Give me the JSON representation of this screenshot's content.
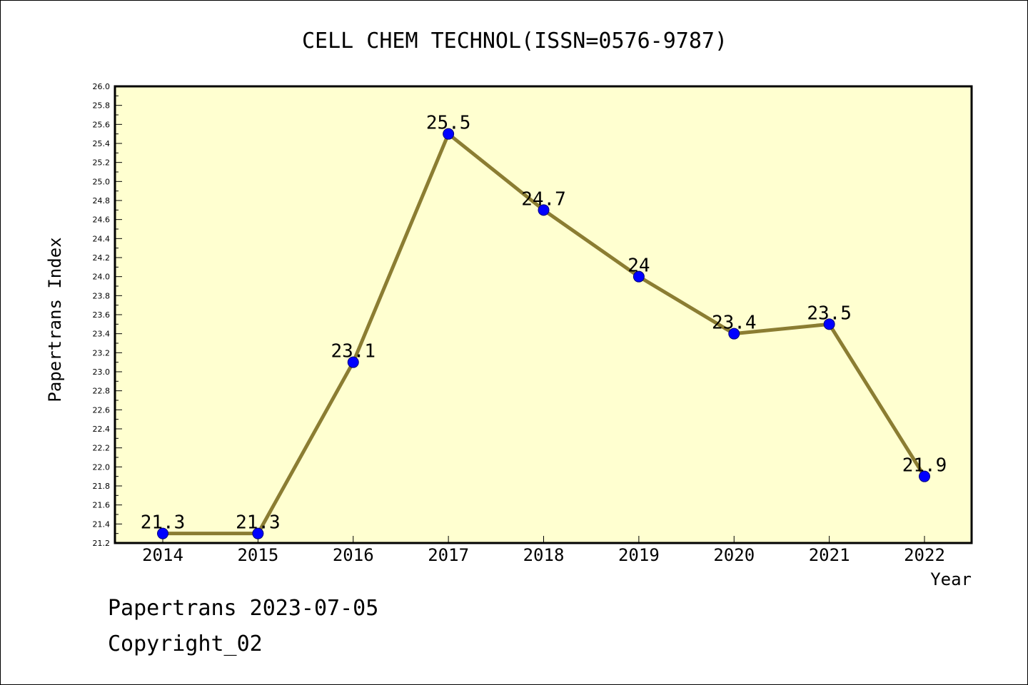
{
  "chart_data": {
    "type": "line",
    "title": "CELL CHEM TECHNOL(ISSN=0576-9787)",
    "xlabel": "Year",
    "ylabel": "Papertrans Index",
    "categories": [
      "2014",
      "2015",
      "2016",
      "2017",
      "2018",
      "2019",
      "2020",
      "2021",
      "2022"
    ],
    "series": [
      {
        "values": [
          21.3,
          21.3,
          23.1,
          25.5,
          24.7,
          24.0,
          23.4,
          23.5,
          21.9
        ],
        "labels": [
          "21.3",
          "21.3",
          "23.1",
          "25.5",
          "24.7",
          "24",
          "23.4",
          "23.5",
          "21.9"
        ],
        "line_color": "#8b7d32",
        "marker_color": "#0000ff"
      }
    ],
    "ylim": [
      21.2,
      26.0
    ],
    "yticks": [
      "21.2",
      "21.4",
      "21.6",
      "21.8",
      "22.0",
      "22.2",
      "22.4",
      "22.6",
      "22.8",
      "23.0",
      "23.2",
      "23.4",
      "23.6",
      "23.8",
      "24.0",
      "24.2",
      "24.4",
      "24.6",
      "24.8",
      "25.0",
      "25.2",
      "25.4",
      "25.6",
      "25.8",
      "26.0"
    ],
    "grid": false,
    "plot_background": "#ffffd0"
  },
  "footer": {
    "line1": "Papertrans 2023-07-05",
    "line2": "Copyright_02"
  }
}
